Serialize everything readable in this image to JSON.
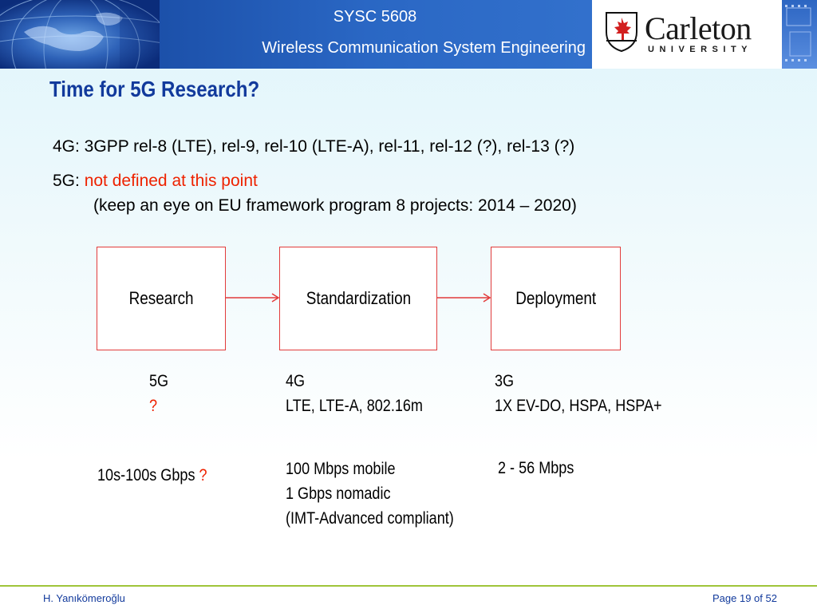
{
  "header": {
    "course_code": "SYSC 5608",
    "course_name": "Wireless Communication System Engineering",
    "logo": {
      "name": "Carleton",
      "sub": "UNIVERSITY"
    }
  },
  "slide": {
    "title": "Time for 5G Research?",
    "line_4g": "4G: 3GPP rel-8 (LTE), rel-9, rel-10 (LTE-A), rel-11, rel-12 (?), rel-13 (?)",
    "line_5g_prefix": "5G: ",
    "line_5g_red": "not defined at this point",
    "line_5g_note": "(keep an eye on EU framework program 8 projects: 2014 – 2020)"
  },
  "flow": {
    "boxes": [
      "Research",
      "Standardization",
      "Deployment"
    ]
  },
  "columns": [
    {
      "gen": "5G",
      "tech": "?",
      "speed_text": "10s-100s Gbps ",
      "speed_mark": "?"
    },
    {
      "gen": "4G",
      "tech": "LTE, LTE-A, 802.16m",
      "speed_lines": [
        "100 Mbps mobile",
        "1 Gbps nomadic",
        "(IMT-Advanced compliant)"
      ]
    },
    {
      "gen": "3G",
      "tech": "1X EV-DO, HSPA, HSPA+",
      "speed_lines": [
        "2 - 56 Mbps"
      ]
    }
  ],
  "footer": {
    "author": "H. Yanıkömeroğlu",
    "page": "Page 19 of 52"
  },
  "colors": {
    "title": "#123a9c",
    "accent_red": "#ee2200",
    "box_border": "#e23b3b",
    "footer_rule": "#9fc43a"
  }
}
